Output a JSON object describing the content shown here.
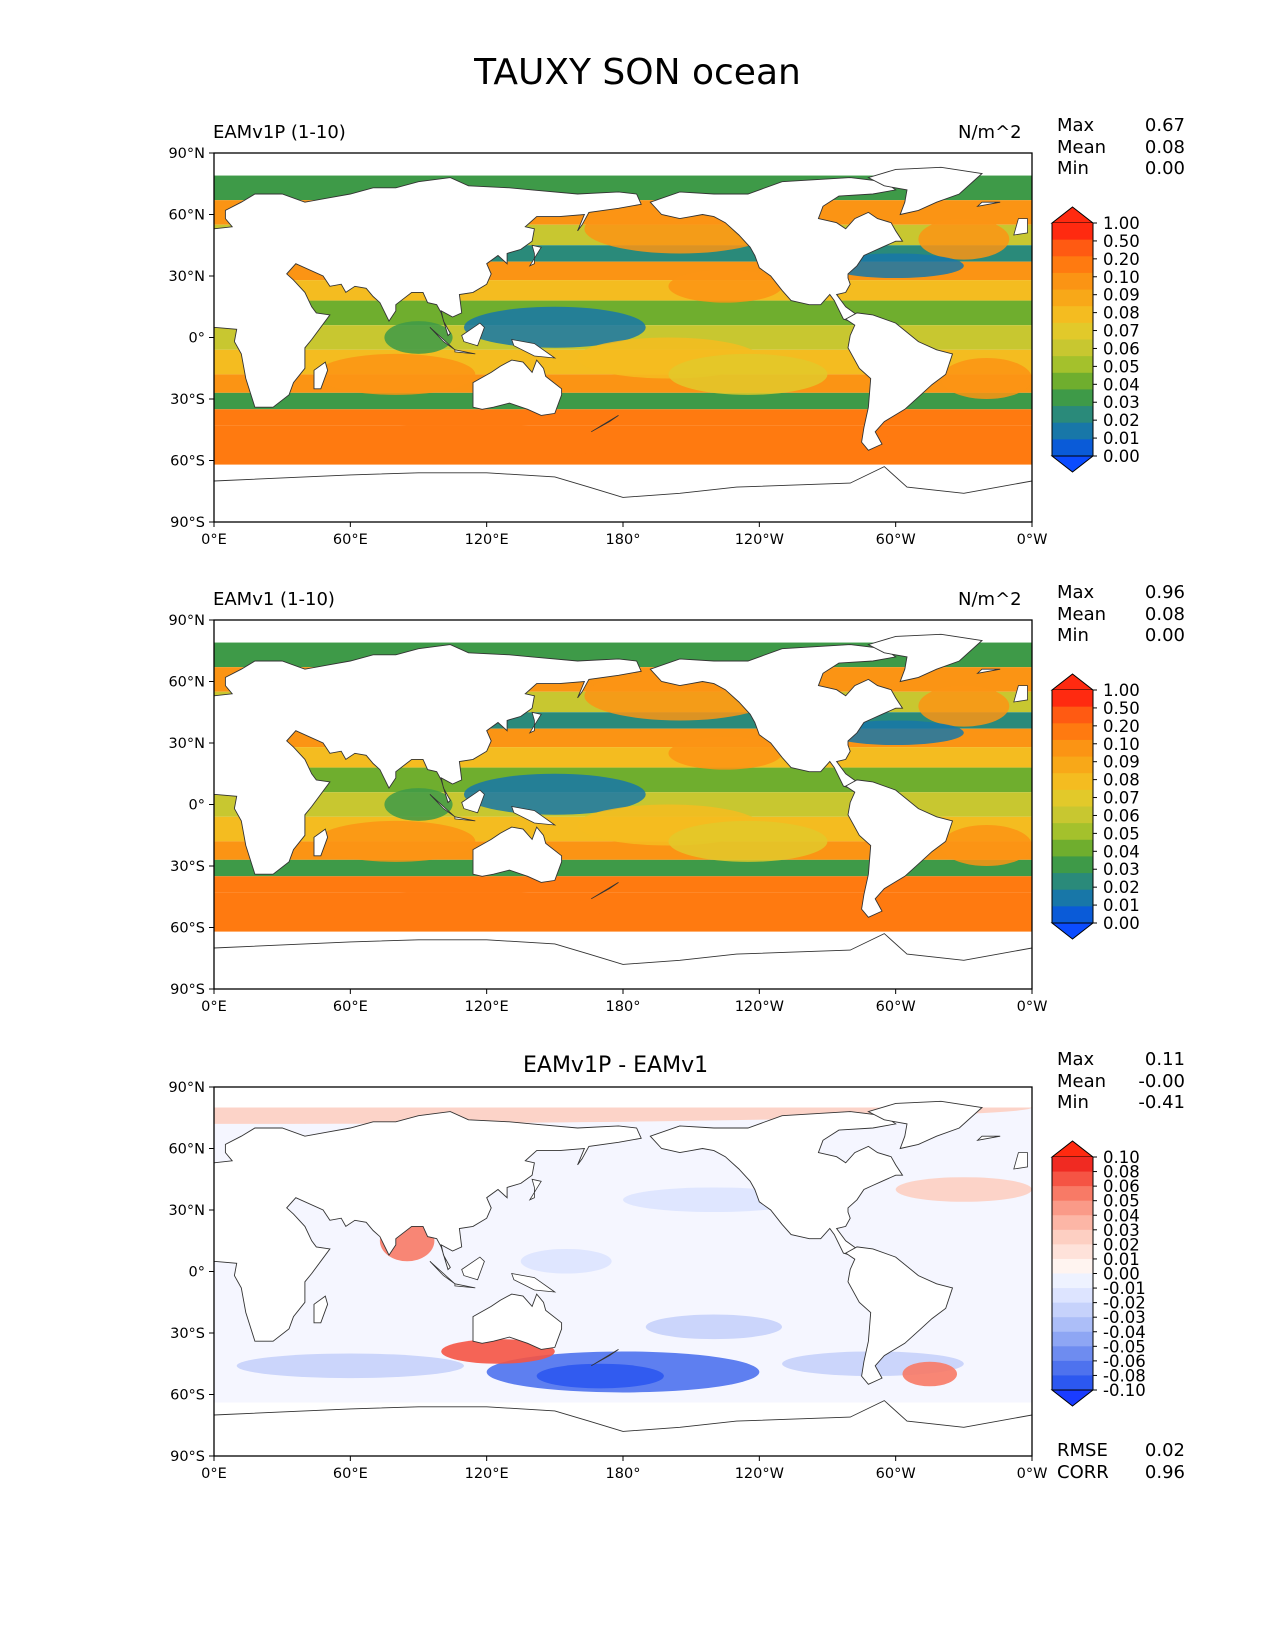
{
  "title": "TAUXY SON ocean",
  "panels": [
    {
      "kind": "field",
      "left_label": "EAMv1P (1-10)",
      "units": "N/m^2",
      "stats": [
        {
          "label": "Max",
          "value": "0.67"
        },
        {
          "label": "Mean",
          "value": "0.08"
        },
        {
          "label": "Min",
          "value": "0.00"
        }
      ]
    },
    {
      "kind": "field",
      "left_label": "EAMv1 (1-10)",
      "units": "N/m^2",
      "stats": [
        {
          "label": "Max",
          "value": "0.96"
        },
        {
          "label": "Mean",
          "value": "0.08"
        },
        {
          "label": "Min",
          "value": "0.00"
        }
      ]
    },
    {
      "kind": "diff",
      "center_title": "EAMv1P - EAMv1",
      "stats": [
        {
          "label": "Max",
          "value": "0.11"
        },
        {
          "label": "Mean",
          "value": "-0.00"
        },
        {
          "label": "Min",
          "value": "-0.41"
        }
      ],
      "metrics": [
        {
          "label": "RMSE",
          "value": "0.02"
        },
        {
          "label": "CORR",
          "value": "0.96"
        }
      ]
    }
  ],
  "axes": {
    "lat_ticks": [
      "90°N",
      "60°N",
      "30°N",
      "0°",
      "30°S",
      "60°S",
      "90°S"
    ],
    "lon_ticks": [
      "0°E",
      "60°E",
      "120°E",
      "180°",
      "120°W",
      "60°W",
      "0°W"
    ]
  },
  "colorbars": {
    "field": {
      "labels": [
        "1.00",
        "0.50",
        "0.20",
        "0.10",
        "0.09",
        "0.08",
        "0.07",
        "0.06",
        "0.05",
        "0.04",
        "0.03",
        "0.02",
        "0.01",
        "0.00"
      ],
      "colors": [
        "#ff2a10",
        "#ff5a12",
        "#ff7a10",
        "#fb9414",
        "#f8a818",
        "#f4bc20",
        "#e2c92a",
        "#c8c730",
        "#a4c12c",
        "#6fae2e",
        "#3e9a48",
        "#2a8a7a",
        "#1877a8",
        "#0a5bd8"
      ],
      "under": "#0b4cff",
      "over": "#ff2a10"
    },
    "diff": {
      "labels": [
        "0.10",
        "0.08",
        "0.06",
        "0.05",
        "0.04",
        "0.03",
        "0.02",
        "0.01",
        "0.00",
        "-0.01",
        "-0.02",
        "-0.03",
        "-0.04",
        "-0.05",
        "-0.06",
        "-0.08",
        "-0.10"
      ],
      "colors": [
        "#f02a22",
        "#f55444",
        "#f87a66",
        "#fa9a88",
        "#fcb6a6",
        "#fdcfc2",
        "#fee2da",
        "#fff4f0",
        "#eef2ff",
        "#dde4ff",
        "#c6d2fb",
        "#acbef8",
        "#8ea6f4",
        "#6e8cf0",
        "#4e72ee",
        "#2c58f0"
      ],
      "under": "#1a3cff",
      "over": "#ff2a10"
    }
  }
}
